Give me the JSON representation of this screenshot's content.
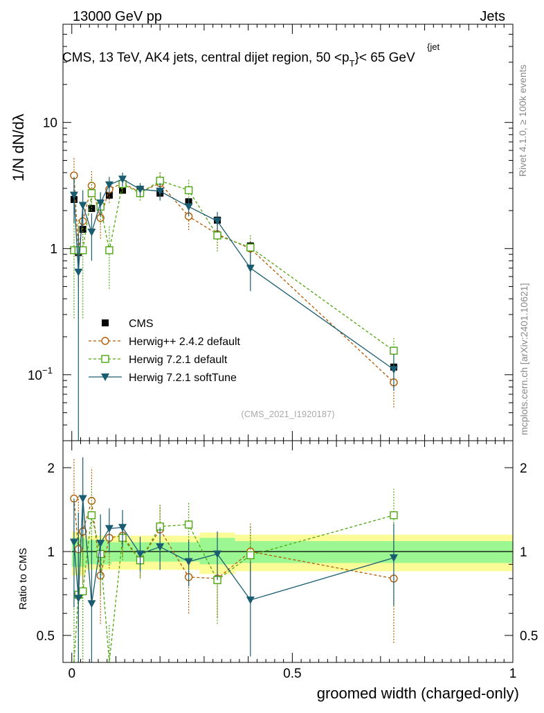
{
  "header": {
    "left": "13000 GeV pp",
    "right": "Jets"
  },
  "side_labels": {
    "rivet": "Rivet 4.1.0, ≥ 100k events",
    "mcplots": "mcplots.cern.ch [arXiv:2401.10621]"
  },
  "chart_data": {
    "type": "scatter",
    "title": "CMS, 13 TeV, AK4 jets, central dijet region, 50 <p_T^{jet}< 65 GeV",
    "title_parts": {
      "main": "CMS, 13 TeV, AK4 jets, central dijet region, 50 <p",
      "sub": "T",
      "sup": "{jet",
      "end": "}< 65 GeV"
    },
    "analysis_id": "(CMS_2021_I1920187)",
    "xlabel": "groomed width (charged-only)",
    "ylabel_main": "1/N dN/dλ",
    "ylabel_ratio": "Ratio to CMS",
    "xlim": [
      -0.02,
      1.0
    ],
    "ylim_main": [
      0.03,
      60
    ],
    "ylim_ratio": [
      0.4,
      2.5
    ],
    "x_ticks": [
      {
        "v": 0,
        "label": "0"
      },
      {
        "v": 0.5,
        "label": "0.5"
      },
      {
        "v": 1,
        "label": "1"
      }
    ],
    "y_ticks_main": [
      {
        "v": 0.1,
        "base": "10",
        "exp": "−1"
      },
      {
        "v": 1,
        "base": "1",
        "exp": ""
      },
      {
        "v": 10,
        "base": "10",
        "exp": ""
      }
    ],
    "y_ticks_ratio": [
      {
        "v": 0.5,
        "label": "0.5"
      },
      {
        "v": 1,
        "label": "1"
      },
      {
        "v": 2,
        "label": "2"
      }
    ],
    "band_regions": [
      {
        "x0": 0.0,
        "x1": 0.03,
        "in_lo": 0.88,
        "in_hi": 1.12,
        "out_lo": 0.82,
        "out_hi": 1.18
      },
      {
        "x0": 0.03,
        "x1": 0.09,
        "in_lo": 0.9,
        "in_hi": 1.1,
        "out_lo": 0.86,
        "out_hi": 1.14
      },
      {
        "x0": 0.09,
        "x1": 0.29,
        "in_lo": 0.92,
        "in_hi": 1.08,
        "out_lo": 0.86,
        "out_hi": 1.14
      },
      {
        "x0": 0.29,
        "x1": 0.37,
        "in_lo": 0.9,
        "in_hi": 1.12,
        "out_lo": 0.83,
        "out_hi": 1.17
      },
      {
        "x0": 0.37,
        "x1": 1.0,
        "in_lo": 0.91,
        "in_hi": 1.09,
        "out_lo": 0.85,
        "out_hi": 1.15
      }
    ],
    "series": [
      {
        "name": "CMS",
        "color": "#000000",
        "marker": "square-filled",
        "line": "none",
        "x": [
          0.005,
          0.015,
          0.025,
          0.045,
          0.065,
          0.085,
          0.115,
          0.155,
          0.2,
          0.265,
          0.33,
          0.405,
          0.73
        ],
        "y": [
          2.45,
          0.93,
          1.42,
          2.08,
          2.15,
          2.65,
          2.9,
          2.95,
          2.75,
          2.35,
          1.68,
          1.05,
          0.115
        ],
        "ylo": [
          2.3,
          0.9,
          1.35,
          1.98,
          2.06,
          2.55,
          2.8,
          2.85,
          2.65,
          2.25,
          1.6,
          0.98,
          0.105
        ],
        "yhi": [
          2.6,
          0.96,
          1.5,
          2.18,
          2.25,
          2.75,
          3.0,
          3.05,
          2.85,
          2.45,
          1.76,
          1.12,
          0.125
        ]
      },
      {
        "name": "Herwig++ 2.4.2 default",
        "color": "#b35900",
        "marker": "circle-open",
        "line": "dashed",
        "x": [
          0.005,
          0.015,
          0.025,
          0.045,
          0.065,
          0.085,
          0.115,
          0.155,
          0.2,
          0.265,
          0.33,
          0.405,
          0.73
        ],
        "y": [
          3.8,
          0.95,
          1.65,
          3.15,
          1.75,
          2.95,
          3.3,
          2.8,
          3.3,
          1.8,
          1.3,
          1.0,
          0.087
        ],
        "ylo": [
          2.5,
          0.5,
          1.1,
          2.3,
          1.2,
          2.3,
          2.8,
          2.4,
          2.6,
          1.4,
          1.0,
          0.75,
          0.055
        ],
        "yhi": [
          5.3,
          1.5,
          2.3,
          4.1,
          2.3,
          3.6,
          3.8,
          3.3,
          4.0,
          2.2,
          1.6,
          1.25,
          0.12
        ],
        "ratio": [
          1.55,
          1.02,
          1.18,
          1.52,
          0.82,
          1.12,
          1.14,
          0.93,
          1.2,
          0.81,
          0.8,
          1.0,
          0.8
        ],
        "rlo": [
          1.02,
          0.52,
          0.77,
          1.1,
          0.55,
          0.87,
          0.96,
          0.81,
          0.94,
          0.6,
          0.58,
          0.72,
          0.47
        ],
        "rhi": [
          2.15,
          1.6,
          1.65,
          2.0,
          1.1,
          1.38,
          1.32,
          1.05,
          1.48,
          1.02,
          1.02,
          1.26,
          1.1
        ]
      },
      {
        "name": "Herwig 7.2.1 default",
        "color": "#4da60f",
        "marker": "square-open",
        "line": "dashed",
        "x": [
          0.005,
          0.015,
          0.025,
          0.045,
          0.065,
          0.085,
          0.115,
          0.155,
          0.2,
          0.265,
          0.33,
          0.405,
          0.73
        ],
        "y": [
          0.97,
          0.97,
          0.97,
          2.75,
          2.15,
          0.97,
          3.25,
          2.75,
          3.45,
          2.9,
          1.27,
          1.02,
          0.155
        ],
        "ylo": [
          0.28,
          0.28,
          0.28,
          2.0,
          1.6,
          0.48,
          2.7,
          2.4,
          2.9,
          2.4,
          0.95,
          0.75,
          0.115
        ],
        "yhi": [
          1.7,
          1.7,
          1.7,
          3.6,
          2.8,
          1.5,
          3.8,
          3.2,
          4.1,
          3.5,
          1.6,
          1.3,
          0.195
        ],
        "ratio": [
          0.39,
          0.7,
          0.72,
          1.35,
          0.98,
          0.37,
          1.12,
          0.93,
          1.23,
          1.25,
          0.79,
          0.97,
          1.35
        ],
        "rlo": [
          0.2,
          0.3,
          0.3,
          0.98,
          0.7,
          0.2,
          0.93,
          0.8,
          0.99,
          1.0,
          0.55,
          0.7,
          0.96
        ],
        "rhi": [
          0.7,
          1.12,
          1.12,
          1.72,
          1.28,
          0.55,
          1.3,
          1.06,
          1.47,
          1.51,
          1.03,
          1.24,
          1.68
        ]
      },
      {
        "name": "Herwig 7.2.1 softTune",
        "color": "#1a5c70",
        "marker": "triangle-down-filled",
        "line": "solid",
        "x": [
          0.005,
          0.015,
          0.025,
          0.045,
          0.065,
          0.085,
          0.115,
          0.155,
          0.2,
          0.265,
          0.33,
          0.405,
          0.73
        ],
        "y": [
          2.65,
          0.65,
          2.2,
          1.35,
          2.3,
          3.2,
          3.55,
          2.95,
          2.85,
          2.15,
          1.65,
          0.7,
          0.11
        ],
        "ylo": [
          1.6,
          0.02,
          1.5,
          0.8,
          1.8,
          2.7,
          3.1,
          2.6,
          2.4,
          1.8,
          1.35,
          0.46,
          0.075
        ],
        "yhi": [
          3.7,
          1.3,
          2.9,
          1.9,
          2.8,
          3.7,
          4.0,
          3.3,
          3.3,
          2.5,
          1.95,
          0.94,
          0.145
        ],
        "ratio": [
          1.08,
          0.68,
          1.55,
          0.65,
          1.07,
          1.21,
          1.22,
          0.98,
          1.04,
          0.92,
          0.98,
          0.67,
          0.95
        ],
        "rlo": [
          0.63,
          0.03,
          1.02,
          0.35,
          0.8,
          0.99,
          1.04,
          0.85,
          0.86,
          0.75,
          0.79,
          0.42,
          0.64
        ],
        "rhi": [
          1.55,
          1.38,
          2.18,
          1.1,
          1.36,
          1.43,
          1.41,
          1.13,
          1.22,
          1.1,
          1.18,
          0.92,
          1.26
        ]
      }
    ]
  }
}
